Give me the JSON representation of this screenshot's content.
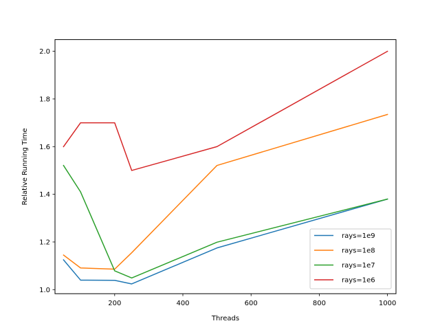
{
  "chart_data": {
    "type": "line",
    "title": "",
    "xlabel": "Threads",
    "ylabel": "Relative Running Time",
    "x": [
      50,
      100,
      200,
      250,
      500,
      1000
    ],
    "xlim": [
      25,
      1025
    ],
    "ylim": [
      0.983,
      2.049
    ],
    "xticks": [
      200,
      400,
      600,
      800,
      1000
    ],
    "yticks": [
      1.0,
      1.2,
      1.4,
      1.6,
      1.8,
      2.0
    ],
    "xtick_labels": [
      "200",
      "400",
      "600",
      "800",
      "1000"
    ],
    "ytick_labels": [
      "1.0",
      "1.2",
      "1.4",
      "1.6",
      "1.8",
      "2.0"
    ],
    "grid": false,
    "legend_position": "lower-right",
    "series": [
      {
        "name": "rays=1e9",
        "color": "#1f77b4",
        "values": [
          1.125,
          1.04,
          1.039,
          1.024,
          1.175,
          1.38
        ]
      },
      {
        "name": "rays=1e8",
        "color": "#ff7f0e",
        "values": [
          1.145,
          1.091,
          1.086,
          1.155,
          1.521,
          1.735
        ]
      },
      {
        "name": "rays=1e7",
        "color": "#2ca02c",
        "values": [
          1.521,
          1.41,
          1.079,
          1.049,
          1.199,
          1.38
        ]
      },
      {
        "name": "rays=1e6",
        "color": "#d62728",
        "values": [
          1.6,
          1.7,
          1.7,
          1.5,
          1.6,
          2.0
        ]
      }
    ]
  }
}
